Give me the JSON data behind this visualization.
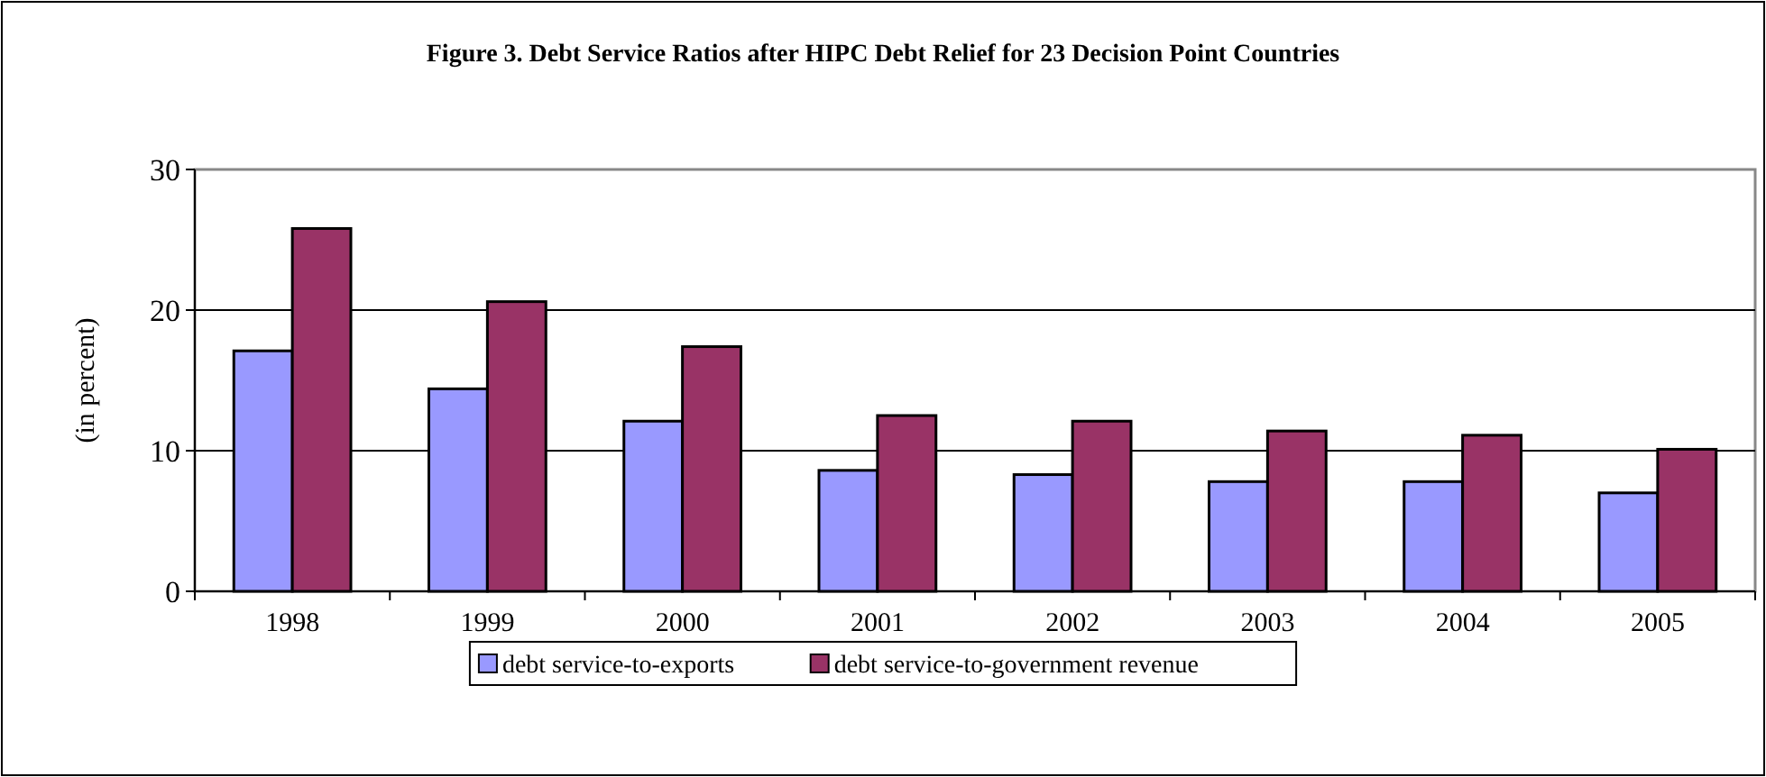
{
  "chart_data": {
    "type": "bar",
    "title": "Figure 3.  Debt Service Ratios after HIPC Debt Relief for 23 Decision Point Countries",
    "ylabel": "(in percent)",
    "categories": [
      "1998",
      "1999",
      "2000",
      "2001",
      "2002",
      "2003",
      "2004",
      "2005"
    ],
    "series": [
      {
        "name": "debt service-to-exports",
        "color": "#9999ff",
        "values": [
          17.1,
          14.4,
          12.1,
          8.6,
          8.3,
          7.8,
          7.8,
          7.0
        ]
      },
      {
        "name": "debt service-to-government revenue",
        "color": "#993366",
        "values": [
          25.8,
          20.6,
          17.4,
          12.5,
          12.1,
          11.4,
          11.1,
          10.1
        ]
      }
    ],
    "ylim": [
      0,
      30
    ],
    "yticks": [
      0,
      10,
      20,
      30
    ],
    "grid": "y",
    "legend": "bottom"
  }
}
